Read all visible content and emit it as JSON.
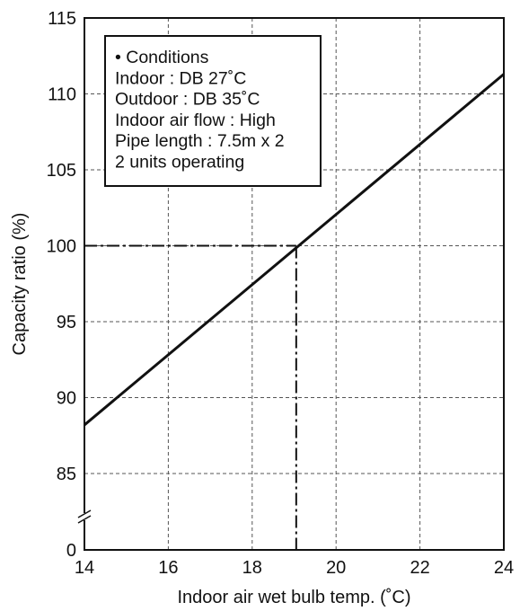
{
  "chart_data": {
    "type": "line",
    "xlabel": "Indoor air wet bulb temp. (˚C)",
    "ylabel": "Capacity ratio (%)",
    "xlim": [
      14,
      24
    ],
    "ylim_visible": [
      85,
      115
    ],
    "x_ticks": [
      "14",
      "16",
      "18",
      "20",
      "22",
      "24"
    ],
    "x_tick_values": [
      14,
      16,
      18,
      20,
      22,
      24
    ],
    "y_ticks": [
      "0",
      "85",
      "90",
      "95",
      "100",
      "105",
      "110",
      "115"
    ],
    "y_tick_values": [
      null,
      85,
      90,
      95,
      100,
      105,
      110,
      115
    ],
    "y_axis_break": true,
    "grid": true,
    "series": [
      {
        "style": "solid",
        "x": [
          14,
          24
        ],
        "y": [
          88.2,
          111.3
        ]
      }
    ],
    "reference_point": {
      "style": "dash-dot",
      "x": 19.05,
      "y": 100
    },
    "annotation": {
      "lines": [
        "• Conditions",
        "Indoor : DB 27˚C",
        "Outdoor : DB 35˚C",
        "Indoor air flow : High",
        "Pipe length : 7.5m x 2",
        "2 units operating"
      ],
      "placement": "top-left"
    },
    "colors": {
      "line": "#111111",
      "grid": "#555555",
      "background": "#ffffff"
    }
  }
}
